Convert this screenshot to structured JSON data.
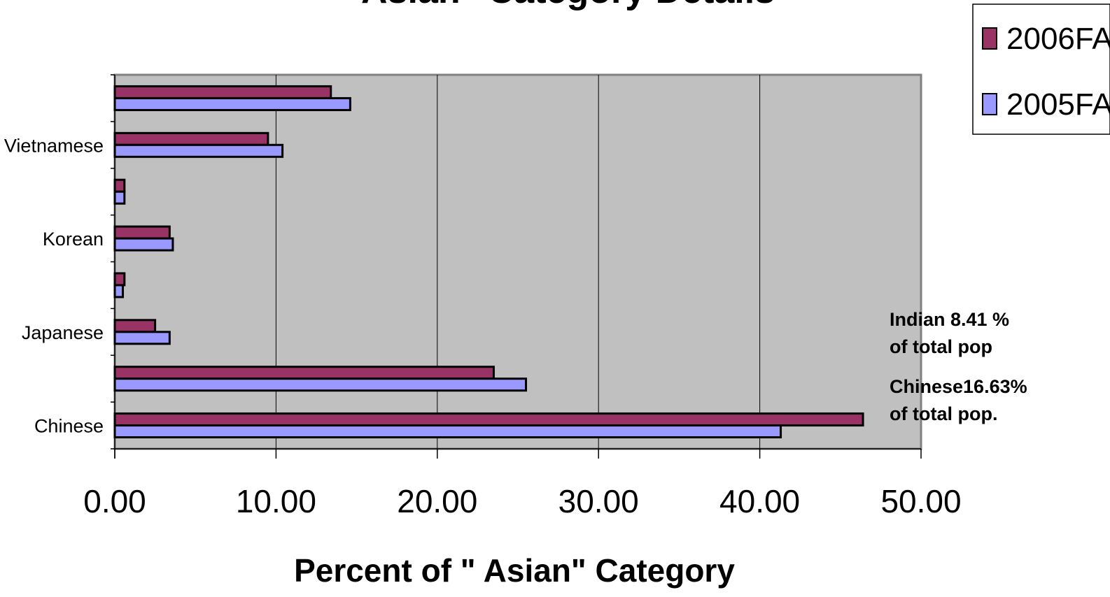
{
  "chart_data": {
    "type": "bar",
    "orientation": "horizontal",
    "title": "\" Asian\" Category Details",
    "xlabel": "Percent of \" Asian\" Category",
    "ylabel": "",
    "xlim": [
      0,
      50
    ],
    "x_ticks": [
      "0.00",
      "10.00",
      "20.00",
      "30.00",
      "40.00",
      "50.00"
    ],
    "categories": [
      "Chinese",
      "",
      "Japanese",
      "",
      "Korean",
      "",
      "Vietnamese",
      ""
    ],
    "series": [
      {
        "name": "2006FA",
        "color": "#993366",
        "values": [
          46.4,
          23.5,
          2.5,
          0.6,
          3.4,
          0.6,
          9.5,
          13.4
        ]
      },
      {
        "name": "2005FA",
        "color": "#9999ff",
        "values": [
          41.3,
          25.5,
          3.4,
          0.5,
          3.6,
          0.6,
          10.4,
          14.6
        ]
      }
    ],
    "plot_background": "#c0c0c0",
    "grid": true,
    "legend_position": "top-right",
    "annotations": [
      {
        "lines": [
          "Indian  8.41 %",
          "of total pop"
        ]
      },
      {
        "lines": [
          "Chinese16.63%",
          "of total pop."
        ]
      }
    ]
  }
}
